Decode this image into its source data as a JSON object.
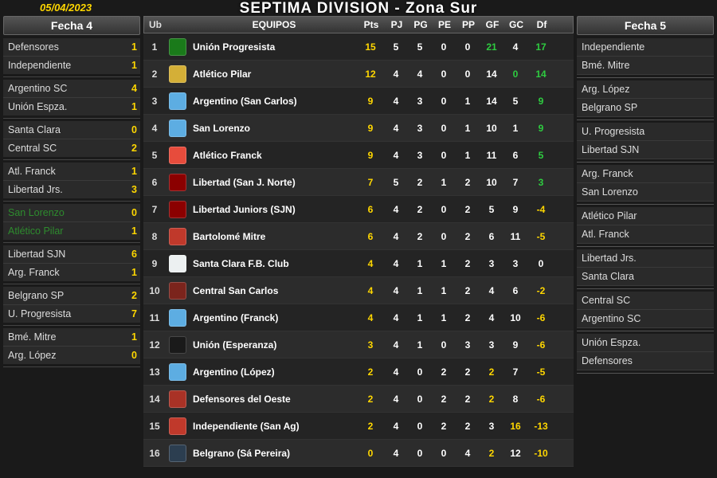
{
  "date": "05/04/2023",
  "title": "SEPTIMA DIVISION - Zona Sur",
  "colors": {
    "yellow": "#ffd700",
    "green": "#2ecc40",
    "red": "#e74c3c",
    "white": "#ffffff",
    "muted": "#bbbbbb"
  },
  "left": {
    "header": "Fecha 4",
    "matches": [
      {
        "t1": "Defensores",
        "s1": "1",
        "t2": "Independiente",
        "s2": "1"
      },
      {
        "t1": "Argentino SC",
        "s1": "4",
        "t2": "Unión Espza.",
        "s2": "1"
      },
      {
        "t1": "Santa Clara",
        "s1": "0",
        "t2": "Central SC",
        "s2": "2"
      },
      {
        "t1": "Atl. Franck",
        "s1": "1",
        "t2": "Libertad Jrs.",
        "s2": "3"
      },
      {
        "t1": "San Lorenzo",
        "s1": "0",
        "t2": "Atlético Pilar",
        "s2": "1",
        "highlight": true
      },
      {
        "t1": "Libertad SJN",
        "s1": "6",
        "t2": "Arg. Franck",
        "s2": "1"
      },
      {
        "t1": "Belgrano SP",
        "s1": "2",
        "t2": "U. Progresista",
        "s2": "7"
      },
      {
        "t1": "Bmé. Mitre",
        "s1": "1",
        "t2": "Arg. López",
        "s2": "0"
      }
    ]
  },
  "right": {
    "header": "Fecha 5",
    "fixtures": [
      [
        "Independiente",
        "Bmé. Mitre"
      ],
      [
        "Arg. López",
        "Belgrano SP"
      ],
      [
        "U. Progresista",
        "Libertad SJN"
      ],
      [
        "Arg. Franck",
        "San Lorenzo"
      ],
      [
        "Atlético Pilar",
        "Atl. Franck"
      ],
      [
        "Libertad Jrs.",
        "Santa Clara"
      ],
      [
        "Central SC",
        "Argentino SC"
      ],
      [
        "Unión Espza.",
        "Defensores"
      ]
    ]
  },
  "standings": {
    "headers": {
      "ub": "Ub",
      "team": "EQUIPOS",
      "pts": "Pts",
      "pj": "PJ",
      "pg": "PG",
      "pe": "PE",
      "pp": "PP",
      "gf": "GF",
      "gc": "GC",
      "df": "Df"
    },
    "rows": [
      {
        "ub": 1,
        "crest": "#1a7a1a",
        "team": "Unión Progresista",
        "pts": 15,
        "ptsC": "#ffd700",
        "pj": 5,
        "pg": 5,
        "pe": 0,
        "pp": 0,
        "gf": 21,
        "gfC": "#2ecc40",
        "gc": 4,
        "gcC": "#fff",
        "df": 17,
        "dfC": "#2ecc40"
      },
      {
        "ub": 2,
        "crest": "#d4af37",
        "team": "Atlético Pilar",
        "pts": 12,
        "ptsC": "#ffd700",
        "pj": 4,
        "pg": 4,
        "pe": 0,
        "pp": 0,
        "gf": 14,
        "gfC": "#fff",
        "gc": 0,
        "gcC": "#2ecc40",
        "df": 14,
        "dfC": "#2ecc40"
      },
      {
        "ub": 3,
        "crest": "#5dade2",
        "team": "Argentino (San Carlos)",
        "pts": 9,
        "ptsC": "#ffd700",
        "pj": 4,
        "pg": 3,
        "pe": 0,
        "pp": 1,
        "gf": 14,
        "gfC": "#fff",
        "gc": 5,
        "gcC": "#fff",
        "df": 9,
        "dfC": "#2ecc40"
      },
      {
        "ub": 4,
        "crest": "#5dade2",
        "team": "San Lorenzo",
        "pts": 9,
        "ptsC": "#ffd700",
        "pj": 4,
        "pg": 3,
        "pe": 0,
        "pp": 1,
        "gf": 10,
        "gfC": "#fff",
        "gc": 1,
        "gcC": "#fff",
        "df": 9,
        "dfC": "#2ecc40"
      },
      {
        "ub": 5,
        "crest": "#e74c3c",
        "team": "Atlético Franck",
        "pts": 9,
        "ptsC": "#ffd700",
        "pj": 4,
        "pg": 3,
        "pe": 0,
        "pp": 1,
        "gf": 11,
        "gfC": "#fff",
        "gc": 6,
        "gcC": "#fff",
        "df": 5,
        "dfC": "#2ecc40"
      },
      {
        "ub": 6,
        "crest": "#8b0000",
        "team": "Libertad (San J. Norte)",
        "pts": 7,
        "ptsC": "#ffd700",
        "pj": 5,
        "pg": 2,
        "pe": 1,
        "pp": 2,
        "gf": 10,
        "gfC": "#fff",
        "gc": 7,
        "gcC": "#fff",
        "df": 3,
        "dfC": "#2ecc40"
      },
      {
        "ub": 7,
        "crest": "#8b0000",
        "team": "Libertad Juniors (SJN)",
        "pts": 6,
        "ptsC": "#ffd700",
        "pj": 4,
        "pg": 2,
        "pe": 0,
        "pp": 2,
        "gf": 5,
        "gfC": "#fff",
        "gc": 9,
        "gcC": "#fff",
        "df": -4,
        "dfC": "#ffd700"
      },
      {
        "ub": 8,
        "crest": "#c0392b",
        "team": "Bartolomé Mitre",
        "pts": 6,
        "ptsC": "#ffd700",
        "pj": 4,
        "pg": 2,
        "pe": 0,
        "pp": 2,
        "gf": 6,
        "gfC": "#fff",
        "gc": 11,
        "gcC": "#fff",
        "df": -5,
        "dfC": "#ffd700"
      },
      {
        "ub": 9,
        "crest": "#ecf0f1",
        "team": "Santa Clara F.B. Club",
        "pts": 4,
        "ptsC": "#ffd700",
        "pj": 4,
        "pg": 1,
        "pe": 1,
        "pp": 2,
        "gf": 3,
        "gfC": "#fff",
        "gc": 3,
        "gcC": "#fff",
        "df": 0,
        "dfC": "#fff"
      },
      {
        "ub": 10,
        "crest": "#7b241c",
        "team": "Central San Carlos",
        "pts": 4,
        "ptsC": "#ffd700",
        "pj": 4,
        "pg": 1,
        "pe": 1,
        "pp": 2,
        "gf": 4,
        "gfC": "#fff",
        "gc": 6,
        "gcC": "#fff",
        "df": -2,
        "dfC": "#ffd700"
      },
      {
        "ub": 11,
        "crest": "#5dade2",
        "team": "Argentino (Franck)",
        "pts": 4,
        "ptsC": "#ffd700",
        "pj": 4,
        "pg": 1,
        "pe": 1,
        "pp": 2,
        "gf": 4,
        "gfC": "#fff",
        "gc": 10,
        "gcC": "#fff",
        "df": -6,
        "dfC": "#ffd700"
      },
      {
        "ub": 12,
        "crest": "#1a1a1a",
        "team": "Unión (Esperanza)",
        "pts": 3,
        "ptsC": "#ffd700",
        "pj": 4,
        "pg": 1,
        "pe": 0,
        "pp": 3,
        "gf": 3,
        "gfC": "#fff",
        "gc": 9,
        "gcC": "#fff",
        "df": -6,
        "dfC": "#ffd700"
      },
      {
        "ub": 13,
        "crest": "#5dade2",
        "team": "Argentino (López)",
        "pts": 2,
        "ptsC": "#ffd700",
        "pj": 4,
        "pg": 0,
        "pe": 2,
        "pp": 2,
        "gf": 2,
        "gfC": "#ffd700",
        "gc": 7,
        "gcC": "#fff",
        "df": -5,
        "dfC": "#ffd700"
      },
      {
        "ub": 14,
        "crest": "#a93226",
        "team": "Defensores del Oeste",
        "pts": 2,
        "ptsC": "#ffd700",
        "pj": 4,
        "pg": 0,
        "pe": 2,
        "pp": 2,
        "gf": 2,
        "gfC": "#ffd700",
        "gc": 8,
        "gcC": "#fff",
        "df": -6,
        "dfC": "#ffd700"
      },
      {
        "ub": 15,
        "crest": "#c0392b",
        "team": "Independiente (San Ag)",
        "pts": 2,
        "ptsC": "#ffd700",
        "pj": 4,
        "pg": 0,
        "pe": 2,
        "pp": 2,
        "gf": 3,
        "gfC": "#fff",
        "gc": 16,
        "gcC": "#ffd700",
        "df": -13,
        "dfC": "#ffd700"
      },
      {
        "ub": 16,
        "crest": "#2c3e50",
        "team": "Belgrano (Sá Pereira)",
        "pts": 0,
        "ptsC": "#ffd700",
        "pj": 4,
        "pg": 0,
        "pe": 0,
        "pp": 4,
        "gf": 2,
        "gfC": "#ffd700",
        "gc": 12,
        "gcC": "#fff",
        "df": -10,
        "dfC": "#ffd700"
      }
    ]
  }
}
